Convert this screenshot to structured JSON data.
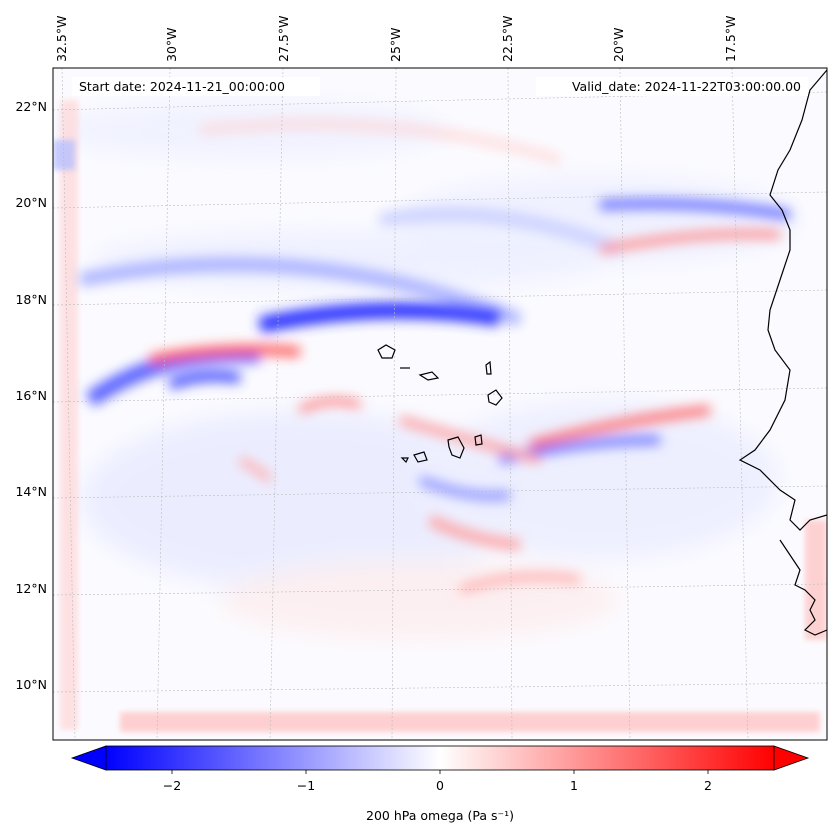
{
  "header": {
    "start_label": "Start date: 2024-11-21_00:00:00",
    "valid_label": "Valid_date: 2024-11-22T03:00:00.00"
  },
  "lon_ticks": [
    "32.5°W",
    "30°W",
    "27.5°W",
    "25°W",
    "22.5°W",
    "20°W",
    "17.5°W"
  ],
  "lat_ticks": [
    "22°N",
    "20°N",
    "18°N",
    "16°N",
    "14°N",
    "12°N",
    "10°N"
  ],
  "colorbar": {
    "ticks": [
      "−2",
      "−1",
      "0",
      "1",
      "2"
    ],
    "tick_values": [
      -2,
      -1,
      0,
      1,
      2
    ],
    "range": [
      -2.5,
      2.5
    ],
    "label": "200 hPa omega (Pa s⁻¹)",
    "colors": {
      "low": "#0000ff",
      "mid": "#ffffff",
      "high": "#ff0000"
    }
  },
  "map": {
    "coastline_color": "#000000",
    "gridline_color": "#bbbbbb",
    "frame_color": "#000000"
  }
}
